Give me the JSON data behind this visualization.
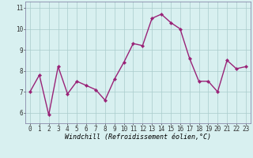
{
  "x": [
    0,
    1,
    2,
    3,
    4,
    5,
    6,
    7,
    8,
    9,
    10,
    11,
    12,
    13,
    14,
    15,
    16,
    17,
    18,
    19,
    20,
    21,
    22,
    23
  ],
  "y": [
    7.0,
    7.8,
    5.9,
    8.2,
    6.9,
    7.5,
    7.3,
    7.1,
    6.6,
    7.6,
    8.4,
    9.3,
    9.2,
    10.5,
    10.7,
    10.3,
    10.0,
    8.6,
    7.5,
    7.5,
    7.0,
    8.5,
    8.1,
    8.2
  ],
  "line_color": "#992277",
  "marker": "D",
  "marker_size": 2.2,
  "linewidth": 1.0,
  "background_color": "#d8f0f0",
  "grid_color": "#aacccc",
  "xlabel": "Windchill (Refroidissement éolien,°C)",
  "xlim": [
    -0.5,
    23.5
  ],
  "ylim": [
    5.5,
    11.3
  ],
  "yticks": [
    6,
    7,
    8,
    9,
    10,
    11
  ],
  "xticks": [
    0,
    1,
    2,
    3,
    4,
    5,
    6,
    7,
    8,
    9,
    10,
    11,
    12,
    13,
    14,
    15,
    16,
    17,
    18,
    19,
    20,
    21,
    22,
    23
  ],
  "tick_fontsize": 5.5,
  "xlabel_fontsize": 6.0,
  "spine_color": "#8888aa"
}
